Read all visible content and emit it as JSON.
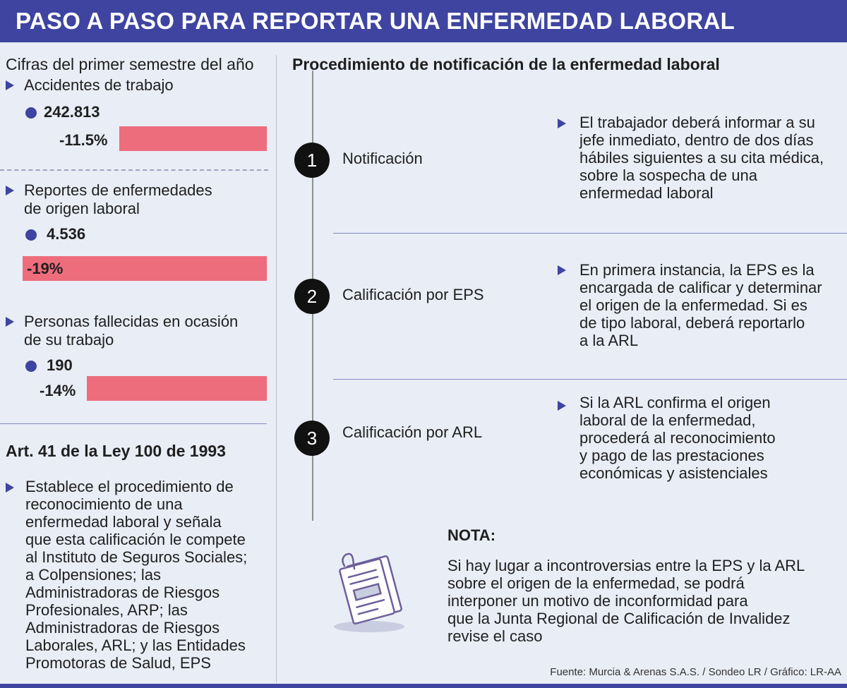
{
  "title": "PASO A PASO PARA REPORTAR UNA ENFERMEDAD LABORAL",
  "left": {
    "heading": "Cifras del primer semestre del año",
    "stats": [
      {
        "label_lines": [
          "Accidentes de trabajo"
        ],
        "value": "242.813",
        "change": "-11.5%"
      },
      {
        "label_lines": [
          "Reportes de enfermedades",
          "de origen laboral"
        ],
        "value": "4.536",
        "change": "-19%"
      },
      {
        "label_lines": [
          "Personas fallecidas en ocasión",
          "de su trabajo"
        ],
        "value": "190",
        "change": "-14%"
      }
    ],
    "law_title": "Art. 41 de la Ley 100 de 1993",
    "law_lines": [
      "Establece el procedimiento de",
      "reconocimiento de una",
      "enfermedad laboral y señala",
      "que esta calificación le compete",
      "al Instituto de Seguros Sociales;",
      "a Colpensiones; las",
      "Administradoras de Riesgos",
      "Profesionales, ARP; las",
      "Administradoras de Riesgos",
      "Laborales, ARL; y las Entidades",
      "Promotoras de Salud, EPS"
    ]
  },
  "chart_data": {
    "type": "bar",
    "title": "Cifras del primer semestre del año",
    "categories": [
      "Accidentes de trabajo",
      "Reportes de enfermedades de origen laboral",
      "Personas fallecidas en ocasión de su trabajo"
    ],
    "series": [
      {
        "values": [
          242813,
          4536,
          190
        ]
      },
      {
        "values": [
          -11.5,
          -19,
          -14
        ]
      }
    ]
  },
  "right": {
    "heading": "Procedimiento de notificación de la enfermedad laboral",
    "steps": [
      {
        "number": "1",
        "name": "Notificación",
        "desc_lines": [
          "El trabajador deberá informar a su",
          "jefe inmediato, dentro de dos días",
          "hábiles siguientes a su cita médica,",
          "sobre la sospecha de una",
          "enfermedad laboral"
        ]
      },
      {
        "number": "2",
        "name": "Calificación por EPS",
        "desc_lines": [
          "En primera instancia, la EPS es la",
          "encargada de calificar y determinar",
          "el origen de la enfermedad. Si es",
          "de tipo laboral, deberá reportarlo",
          "a la ARL"
        ]
      },
      {
        "number": "3",
        "name": "Calificación por ARL",
        "desc_lines": [
          "Si la ARL confirma el origen",
          "laboral de la enfermedad,",
          "procederá al reconocimiento",
          "y pago de las prestaciones",
          "económicas y asistenciales"
        ]
      }
    ],
    "note_title": "NOTA:",
    "note_lines": [
      "Si hay lugar a incontroversias entre la EPS y la ARL",
      "sobre el origen de la enfermedad, se podrá",
      "interponer un motivo de inconformidad para",
      "que la Junta Regional de Calificación de Invalidez",
      "revise el caso"
    ],
    "note_icon": "document-icon"
  },
  "source": "Fuente: Murcia & Arenas S.A.S. / Sondeo LR / Gráfico: LR-AA",
  "colors": {
    "brand": "#3e44a0",
    "bar": "#ee6d7d",
    "background": "#e9edf6"
  }
}
